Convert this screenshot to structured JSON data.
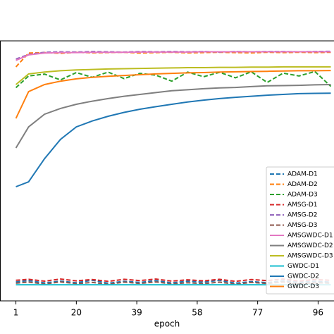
{
  "chart_data": {
    "type": "line",
    "x_label": "epoch",
    "x": [
      1,
      5,
      10,
      15,
      20,
      25,
      30,
      35,
      40,
      45,
      50,
      55,
      60,
      65,
      70,
      75,
      80,
      85,
      90,
      95,
      100
    ],
    "xlim": [
      -4,
      101
    ],
    "xticks": [
      1,
      20,
      39,
      58,
      77,
      96
    ],
    "ylim": [
      0,
      100
    ],
    "legend": "lower right",
    "series": [
      {
        "name": "ADAM-D1",
        "color": "#1f77b4",
        "linestyle": "dashed",
        "values": [
          7.3,
          7.8,
          6.9,
          7.6,
          7.0,
          7.9,
          6.8,
          7.5,
          7.1,
          7.8,
          6.9,
          7.6,
          7.2,
          7.9,
          6.8,
          7.4,
          7.0,
          7.7,
          7.1,
          7.5,
          7.2
        ]
      },
      {
        "name": "ADAM-D2",
        "color": "#ff7f0e",
        "linestyle": "dashed",
        "values": [
          90.0,
          95.3,
          95.5,
          95.2,
          95.6,
          95.4,
          95.5,
          95.6,
          95.3,
          95.5,
          95.6,
          95.4,
          95.5,
          95.6,
          95.5,
          95.4,
          95.6,
          95.5,
          95.6,
          95.5,
          95.6
        ]
      },
      {
        "name": "ADAM-D3",
        "color": "#2ca02c",
        "linestyle": "dashed",
        "values": [
          82.0,
          86.5,
          87.2,
          85.0,
          87.8,
          86.0,
          88.0,
          85.5,
          87.5,
          86.8,
          84.5,
          88.0,
          86.2,
          87.9,
          85.8,
          88.1,
          84.0,
          87.6,
          86.5,
          88.2,
          82.5
        ]
      },
      {
        "name": "AMSG-D1",
        "color": "#d62728",
        "linestyle": "dashed",
        "values": [
          7.9,
          8.3,
          7.6,
          8.4,
          7.7,
          8.2,
          7.5,
          8.3,
          7.8,
          8.4,
          7.6,
          8.1,
          7.7,
          8.3,
          7.5,
          8.2,
          7.8,
          8.4,
          7.6,
          8.2,
          7.9
        ]
      },
      {
        "name": "AMSG-D2",
        "color": "#9467bd",
        "linestyle": "dashed",
        "values": [
          93.0,
          94.8,
          95.6,
          95.8,
          95.7,
          95.9,
          95.8,
          95.7,
          95.9,
          95.8,
          95.9,
          95.8,
          95.9,
          95.7,
          95.9,
          95.8,
          95.9,
          95.9,
          95.8,
          95.9,
          96.0
        ]
      },
      {
        "name": "AMSG-D3",
        "color": "#8c564b",
        "linestyle": "dashed",
        "values": [
          6.8,
          7.2,
          6.5,
          7.3,
          6.6,
          7.1,
          6.4,
          7.2,
          6.7,
          7.3,
          6.5,
          7.0,
          6.6,
          7.2,
          6.4,
          7.1,
          6.7,
          7.3,
          6.5,
          7.0,
          6.8
        ]
      },
      {
        "name": "AMSGWDC-D1",
        "color": "#e377c2",
        "linestyle": "solid",
        "values": [
          92.5,
          94.6,
          95.3,
          95.5,
          95.5,
          95.6,
          95.6,
          95.6,
          95.7,
          95.7,
          95.7,
          95.7,
          95.8,
          95.8,
          95.8,
          95.8,
          95.8,
          95.8,
          95.8,
          95.8,
          95.8
        ]
      },
      {
        "name": "AMSGWDC-D2",
        "color": "#7f7f7f",
        "linestyle": "solid",
        "values": [
          58.8,
          66.9,
          71.8,
          74.0,
          75.6,
          76.8,
          77.8,
          78.7,
          79.4,
          80.1,
          80.8,
          81.2,
          81.6,
          81.9,
          82.1,
          82.4,
          82.7,
          82.8,
          82.9,
          83.1,
          83.2
        ]
      },
      {
        "name": "AMSGWDC-D3",
        "color": "#bcbd22",
        "linestyle": "solid",
        "values": [
          83.2,
          87.3,
          88.0,
          88.5,
          88.8,
          89.0,
          89.2,
          89.3,
          89.4,
          89.5,
          89.6,
          89.7,
          89.7,
          89.8,
          89.8,
          89.9,
          89.9,
          90.0,
          90.0,
          90.0,
          90.0
        ]
      },
      {
        "name": "GWDC-D1",
        "color": "#17becf",
        "linestyle": "solid",
        "values": [
          6.2,
          6.2,
          6.2,
          6.2,
          6.2,
          6.2,
          6.2,
          6.2,
          6.2,
          6.2,
          6.2,
          6.2,
          6.2,
          6.2,
          6.2,
          6.2,
          6.2,
          6.2,
          6.2,
          6.2,
          6.2
        ]
      },
      {
        "name": "GWDC-D2",
        "color": "#1f77b4",
        "linestyle": "solid",
        "values": [
          43.9,
          45.8,
          54.7,
          62.1,
          66.9,
          69.2,
          71.0,
          72.5,
          73.7,
          74.7,
          75.6,
          76.5,
          77.2,
          77.8,
          78.3,
          78.7,
          79.1,
          79.4,
          79.7,
          79.8,
          79.9
        ]
      },
      {
        "name": "GWDC-D3",
        "color": "#ff7f0e",
        "linestyle": "solid",
        "values": [
          70.2,
          80.5,
          83.2,
          84.5,
          85.4,
          86.0,
          86.4,
          86.7,
          87.0,
          87.3,
          87.5,
          87.7,
          87.8,
          88.0,
          88.1,
          88.2,
          88.3,
          88.4,
          88.5,
          88.5,
          88.6
        ]
      }
    ]
  }
}
